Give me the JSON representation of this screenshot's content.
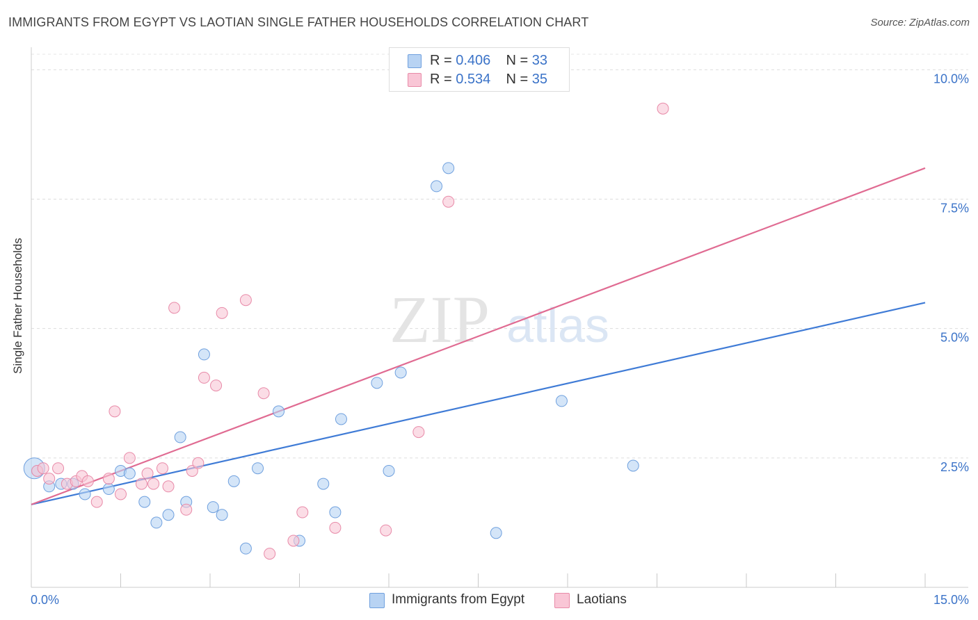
{
  "title": "IMMIGRANTS FROM EGYPT VS LAOTIAN SINGLE FATHER HOUSEHOLDS CORRELATION CHART",
  "source": "Source: ZipAtlas.com",
  "watermark": {
    "zip": "ZIP",
    "atlas": "atlas"
  },
  "legend": {
    "r_label": "R =",
    "n_label": "N =",
    "series": [
      {
        "name": "Immigrants from Egypt",
        "r": "0.406",
        "n": "33",
        "fill": "#b8d3f3",
        "stroke": "#6fa0de"
      },
      {
        "name": "Laotians",
        "r": "0.534",
        "n": "35",
        "fill": "#f9c6d6",
        "stroke": "#e88aa8"
      }
    ]
  },
  "chart_data": {
    "type": "scatter",
    "title": "IMMIGRANTS FROM EGYPT VS LAOTIAN SINGLE FATHER HOUSEHOLDS CORRELATION CHART",
    "xlabel": "",
    "ylabel": "Single Father Households",
    "xlim": [
      0,
      15
    ],
    "ylim": [
      0,
      10.3
    ],
    "x_tick_labels": [
      "0.0%",
      "15.0%"
    ],
    "y_ticks": [
      2.5,
      5.0,
      7.5,
      10.0
    ],
    "y_tick_labels": [
      "2.5%",
      "5.0%",
      "7.5%",
      "10.0%"
    ],
    "grid": true,
    "legend_position": "top-center",
    "series": [
      {
        "name": "Immigrants from Egypt",
        "color": "#3f7bd6",
        "points": [
          [
            0.1,
            2.25
          ],
          [
            0.3,
            1.95
          ],
          [
            0.5,
            2.0
          ],
          [
            0.7,
            2.0
          ],
          [
            0.9,
            1.8
          ],
          [
            1.3,
            1.9
          ],
          [
            1.5,
            2.25
          ],
          [
            1.65,
            2.2
          ],
          [
            1.9,
            1.65
          ],
          [
            2.1,
            1.25
          ],
          [
            2.3,
            1.4
          ],
          [
            2.5,
            2.9
          ],
          [
            2.6,
            1.65
          ],
          [
            2.9,
            4.5
          ],
          [
            3.05,
            1.55
          ],
          [
            3.2,
            1.4
          ],
          [
            3.4,
            2.05
          ],
          [
            3.6,
            0.75
          ],
          [
            3.8,
            2.3
          ],
          [
            4.15,
            3.4
          ],
          [
            4.5,
            0.9
          ],
          [
            4.9,
            2.0
          ],
          [
            5.1,
            1.45
          ],
          [
            5.2,
            3.25
          ],
          [
            5.8,
            3.95
          ],
          [
            6.0,
            2.25
          ],
          [
            6.2,
            4.15
          ],
          [
            6.8,
            7.75
          ],
          [
            7.0,
            8.1
          ],
          [
            7.8,
            1.05
          ],
          [
            8.9,
            3.6
          ],
          [
            10.1,
            2.35
          ],
          [
            0.05,
            2.3
          ]
        ],
        "trend": {
          "x": [
            0,
            15
          ],
          "y": [
            1.6,
            5.5
          ]
        }
      },
      {
        "name": "Laotians",
        "color": "#e06b92",
        "points": [
          [
            0.1,
            2.25
          ],
          [
            0.2,
            2.3
          ],
          [
            0.3,
            2.1
          ],
          [
            0.45,
            2.3
          ],
          [
            0.6,
            2.0
          ],
          [
            0.75,
            2.05
          ],
          [
            0.85,
            2.15
          ],
          [
            0.95,
            2.05
          ],
          [
            1.1,
            1.65
          ],
          [
            1.3,
            2.1
          ],
          [
            1.4,
            3.4
          ],
          [
            1.5,
            1.8
          ],
          [
            1.65,
            2.5
          ],
          [
            1.85,
            2.0
          ],
          [
            1.95,
            2.2
          ],
          [
            2.05,
            2.0
          ],
          [
            2.2,
            2.3
          ],
          [
            2.3,
            1.95
          ],
          [
            2.4,
            5.4
          ],
          [
            2.6,
            1.5
          ],
          [
            2.7,
            2.25
          ],
          [
            2.8,
            2.4
          ],
          [
            2.9,
            4.05
          ],
          [
            3.1,
            3.9
          ],
          [
            3.2,
            5.3
          ],
          [
            3.6,
            5.55
          ],
          [
            3.9,
            3.75
          ],
          [
            4.0,
            0.65
          ],
          [
            4.4,
            0.9
          ],
          [
            4.55,
            1.45
          ],
          [
            5.1,
            1.15
          ],
          [
            5.95,
            1.1
          ],
          [
            6.5,
            3.0
          ],
          [
            7.0,
            7.45
          ],
          [
            10.6,
            9.25
          ]
        ],
        "trend": {
          "x": [
            0,
            15
          ],
          "y": [
            1.6,
            8.1
          ]
        }
      }
    ]
  }
}
